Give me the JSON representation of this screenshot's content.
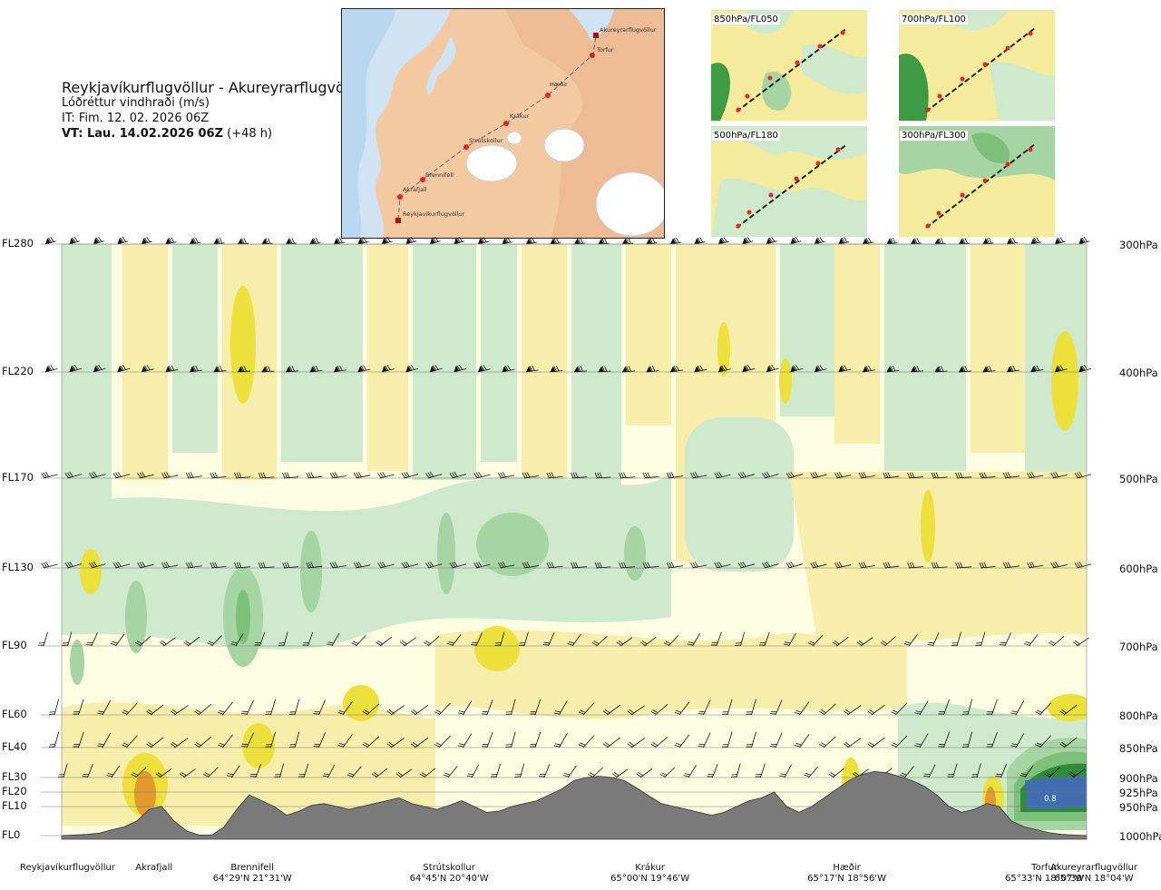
{
  "title": {
    "route": "Reykjavíkurflugvöllur - Akureyrarflugvöllur",
    "variable": "Lóðréttur vindhraði (m/s)",
    "issue_time": "IT: Fim. 12. 02. 2026 06Z",
    "valid_prefix": "VT: Lau. 14.02.2026 06Z",
    "valid_suffix": "(+48 h)"
  },
  "map": {
    "places": [
      "Akureyrarflugvöllur",
      "Torfur",
      "Hæðir",
      "Krákur",
      "Strútskollur",
      "Brennifell",
      "Akrafjall",
      "Reykjavíkurflugvöllur"
    ]
  },
  "mini_maps": [
    {
      "label": "850hPa/FL050"
    },
    {
      "label": "700hPa/FL100"
    },
    {
      "label": "500hPa/FL180"
    },
    {
      "label": "300hPa/FL300"
    }
  ],
  "colors": {
    "strong_down": "#3f6fb0",
    "down_dark": "#2e8b3a",
    "down_mid": "#7cc07a",
    "down_light": "#a6d4a2",
    "down_pale": "#cfe9cc",
    "neutral": "#fdfde2",
    "up_pale": "#f8eeab",
    "up_mid": "#ece13c",
    "up_strong": "#e39a2a",
    "terrain": "#7a7a7a"
  },
  "chart_data": {
    "type": "cross-section",
    "title": "Lóðréttur vindhraði (m/s)",
    "xlabel": "",
    "ylabel": "",
    "flight_levels": [
      {
        "label": "FL280",
        "hpa": 300
      },
      {
        "label": "FL220",
        "hpa": 400
      },
      {
        "label": "FL170",
        "hpa": 500
      },
      {
        "label": "FL130",
        "hpa": 600
      },
      {
        "label": "FL90",
        "hpa": 700
      },
      {
        "label": "FL60",
        "hpa": 800
      },
      {
        "label": "FL40",
        "hpa": 850
      },
      {
        "label": "FL30",
        "hpa": 900
      },
      {
        "label": "FL20",
        "hpa": 925
      },
      {
        "label": "FL10",
        "hpa": 950
      },
      {
        "label": "FL0",
        "hpa": 1000
      }
    ],
    "pressure_labels": [
      "300hPa",
      "400hPa",
      "500hPa",
      "600hPa",
      "700hPa",
      "800hPa",
      "850hPa",
      "900hPa",
      "925hPa",
      "950hPa",
      "1000hPa"
    ],
    "locations": [
      {
        "name": "Reykjavíkurflugvöllur",
        "coord": "",
        "along": 0.0
      },
      {
        "name": "Akrafjall",
        "coord": "",
        "along": 0.09
      },
      {
        "name": "Brennifell",
        "coord": "64°29'N 21°31'W",
        "along": 0.186
      },
      {
        "name": "Strútskollur",
        "coord": "64°45'N 20°40'W",
        "along": 0.378
      },
      {
        "name": "Krákur",
        "coord": "65°00'N 19°46'W",
        "along": 0.574
      },
      {
        "name": "Hæðir",
        "coord": "65°17'N 18°56'W",
        "along": 0.766
      },
      {
        "name": "Torfur",
        "coord": "65°33'N 18°07'W",
        "along": 0.958
      },
      {
        "name": "Akureyrarflugvöllur",
        "coord": "65°39'N 18°04'W",
        "along": 1.0
      }
    ],
    "terrain_hpa": [
      1000,
      999,
      998,
      996,
      990,
      985,
      975,
      955,
      950,
      975,
      992,
      999,
      999,
      985,
      955,
      930,
      940,
      950,
      965,
      958,
      948,
      945,
      950,
      955,
      950,
      945,
      940,
      935,
      945,
      950,
      955,
      948,
      940,
      950,
      960,
      958,
      950,
      945,
      940,
      930,
      920,
      905,
      900,
      898,
      900,
      905,
      918,
      932,
      945,
      950,
      955,
      960,
      965,
      960,
      950,
      940,
      935,
      925,
      950,
      960,
      950,
      935,
      920,
      905,
      895,
      890,
      892,
      898,
      905,
      915,
      930,
      950,
      960,
      955,
      945,
      950,
      975,
      985,
      990,
      995,
      998,
      999,
      1000
    ],
    "annotations": [
      {
        "text": "0.8",
        "along": 0.955,
        "hpa": 936
      }
    ],
    "ylim_hpa": [
      300,
      1000
    ]
  }
}
